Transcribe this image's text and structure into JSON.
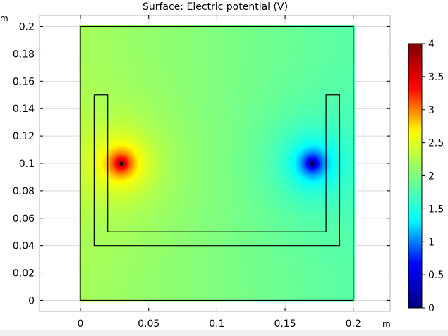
{
  "chart_data": {
    "type": "heatmap",
    "title": "Surface: Electric potential (V)",
    "x_unit": "m",
    "y_unit": "m",
    "xlim": [
      -0.03,
      0.227
    ],
    "ylim": [
      -0.008,
      0.208
    ],
    "x_ticks": [
      0,
      0.05,
      0.1,
      0.15,
      0.2
    ],
    "x_tick_labels": [
      "0",
      "0.05",
      "0.1",
      "0.15",
      "0.2"
    ],
    "y_ticks": [
      0,
      0.02,
      0.04,
      0.06,
      0.08,
      0.1,
      0.12,
      0.14,
      0.16,
      0.18,
      0.2
    ],
    "y_tick_labels": [
      "0",
      "0.02",
      "0.04",
      "0.06",
      "0.08",
      "0.1",
      "0.12",
      "0.14",
      "0.16",
      "0.18",
      "0.2"
    ],
    "domain": {
      "x": [
        0,
        0.2
      ],
      "y": [
        0,
        0.2
      ]
    },
    "background_potential": 2.0,
    "sources": [
      {
        "x": 0.03,
        "y": 0.1,
        "potential": 4.0
      },
      {
        "x": 0.17,
        "y": 0.1,
        "potential": 0.0
      }
    ],
    "container_outline": [
      [
        0.01,
        0.15
      ],
      [
        0.02,
        0.15
      ],
      [
        0.02,
        0.05
      ],
      [
        0.18,
        0.05
      ],
      [
        0.18,
        0.15
      ],
      [
        0.19,
        0.15
      ],
      [
        0.19,
        0.04
      ],
      [
        0.01,
        0.04
      ],
      [
        0.01,
        0.15
      ]
    ],
    "colorbar": {
      "min": 0,
      "max": 4,
      "ticks": [
        0,
        0.5,
        1,
        1.5,
        2,
        2.5,
        3,
        3.5,
        4
      ],
      "tick_labels": [
        "0",
        "0.5",
        "1",
        "1.5",
        "2",
        "2.5",
        "3",
        "3.5",
        "4"
      ],
      "colormap": "rainbow",
      "colormap_stops": [
        "#00007f",
        "#0000ff",
        "#00ffff",
        "#7fff7f",
        "#ffff00",
        "#ff0000",
        "#7f0000"
      ]
    },
    "grid": true,
    "grid_color": "#d9d9d9",
    "outline_color": "#000000"
  }
}
